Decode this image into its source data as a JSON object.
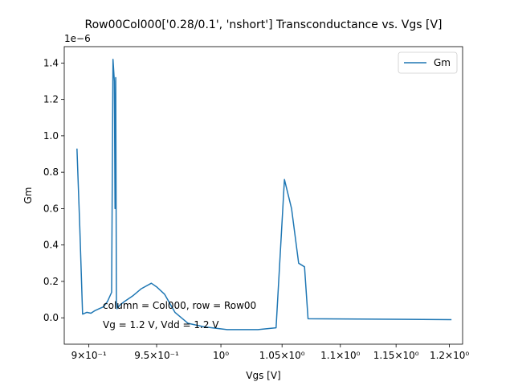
{
  "chart_data": {
    "type": "line",
    "title": "Row00Col000['0.28/0.1', 'nshort'] Transconductance vs. Vgs [V]",
    "xlabel": "Vgs [V]",
    "ylabel": "Gm",
    "y_offset_text": "1e−6",
    "x_scale": "log",
    "xlim": [
      0.8825,
      1.2127
    ],
    "ylim": [
      -1.45e-07,
      1.49e-06
    ],
    "x_ticks": [
      {
        "value": 0.9,
        "label": "9×10⁻¹"
      },
      {
        "value": 0.95,
        "label": "9.5×10⁻¹"
      },
      {
        "value": 1.0,
        "label": "10⁰"
      },
      {
        "value": 1.05,
        "label": "1.05×10⁰"
      },
      {
        "value": 1.1,
        "label": "1.1×10⁰"
      },
      {
        "value": 1.15,
        "label": "1.15×10⁰"
      },
      {
        "value": 1.2,
        "label": "1.2×10⁰"
      }
    ],
    "y_ticks": [
      {
        "value": 0.0,
        "label": "0.0"
      },
      {
        "value": 2e-07,
        "label": "0.2"
      },
      {
        "value": 4e-07,
        "label": "0.4"
      },
      {
        "value": 6e-07,
        "label": "0.6"
      },
      {
        "value": 8e-07,
        "label": "0.8"
      },
      {
        "value": 1e-06,
        "label": "1.0"
      },
      {
        "value": 1.2e-06,
        "label": "1.2"
      },
      {
        "value": 1.4e-06,
        "label": "1.4"
      }
    ],
    "series": [
      {
        "name": "Gm",
        "color": "#1f77b4",
        "x": [
          0.8915,
          0.8935,
          0.8955,
          0.8985,
          0.9015,
          0.9045,
          0.9075,
          0.9105,
          0.9135,
          0.9165,
          0.9175,
          0.9185,
          0.919,
          0.9195,
          0.92,
          0.9205,
          0.921,
          0.9215,
          0.9225,
          0.926,
          0.932,
          0.9385,
          0.946,
          0.95,
          0.956,
          0.964,
          0.974,
          0.987,
          1.005,
          1.03,
          1.045,
          1.052,
          1.058,
          1.064,
          1.069,
          1.072,
          1.202
        ],
        "y": [
          9.3e-07,
          5e-07,
          2e-08,
          3e-08,
          2.5e-08,
          4e-08,
          5e-08,
          6e-08,
          9e-08,
          1.4e-07,
          1.42e-06,
          1.3e-06,
          6e-07,
          1.32e-06,
          9e-08,
          5e-08,
          6e-08,
          6e-08,
          7e-08,
          9e-08,
          1.2e-07,
          1.6e-07,
          1.9e-07,
          1.7e-07,
          1.3e-07,
          3e-08,
          -3e-08,
          -5e-08,
          -6.5e-08,
          -6.5e-08,
          -5.5e-08,
          7.6e-07,
          6e-07,
          3e-07,
          2.8e-07,
          -5e-09,
          -1e-08
        ]
      }
    ],
    "legend": {
      "position": "top-right",
      "entries": [
        "Gm"
      ]
    },
    "annotations": [
      "column = Col000, row = Row00",
      "Vg = 1.2 V, Vdd = 1.2 V"
    ],
    "grid": false
  }
}
